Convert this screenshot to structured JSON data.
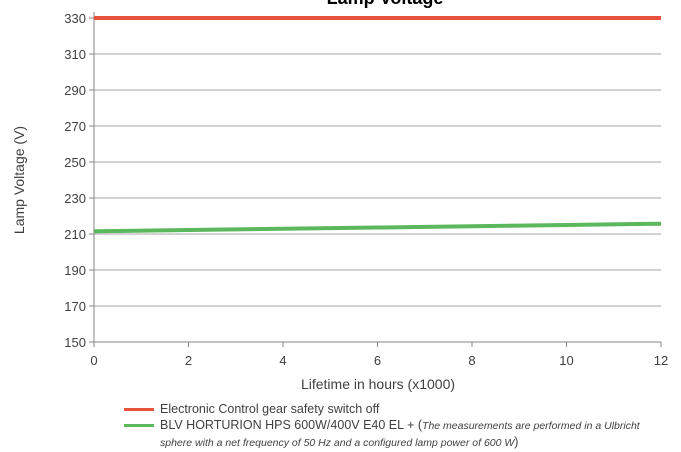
{
  "chart_data": {
    "type": "line",
    "title": "Lamp Voltage",
    "xlabel": "Lifetime in hours (x1000)",
    "ylabel": "Lamp Voltage (V)",
    "xlim": [
      0,
      12
    ],
    "ylim": [
      150,
      330
    ],
    "xticks": [
      0,
      2,
      4,
      6,
      8,
      10,
      12
    ],
    "yticks": [
      150,
      170,
      190,
      210,
      230,
      250,
      270,
      290,
      310,
      330
    ],
    "grid": true,
    "legend_position": "bottom",
    "series": [
      {
        "name": "Electronic Control gear safety switch off",
        "color": "#E8533E",
        "x": [
          0,
          12
        ],
        "y": [
          330,
          330
        ]
      },
      {
        "name": "BLV HORTURION HPS 600W/400V E40 EL + (",
        "note": "The measurements are performed in a Ulbricht sphere with a net frequency of 50 Hz and a configured lamp power of 600 W",
        "note_close": ")",
        "color": "#5CB85C",
        "x": [
          0,
          2,
          4,
          6,
          8,
          10,
          12
        ],
        "y": [
          211.5,
          212.2,
          212.9,
          213.6,
          214.3,
          215.0,
          215.7
        ]
      }
    ]
  }
}
